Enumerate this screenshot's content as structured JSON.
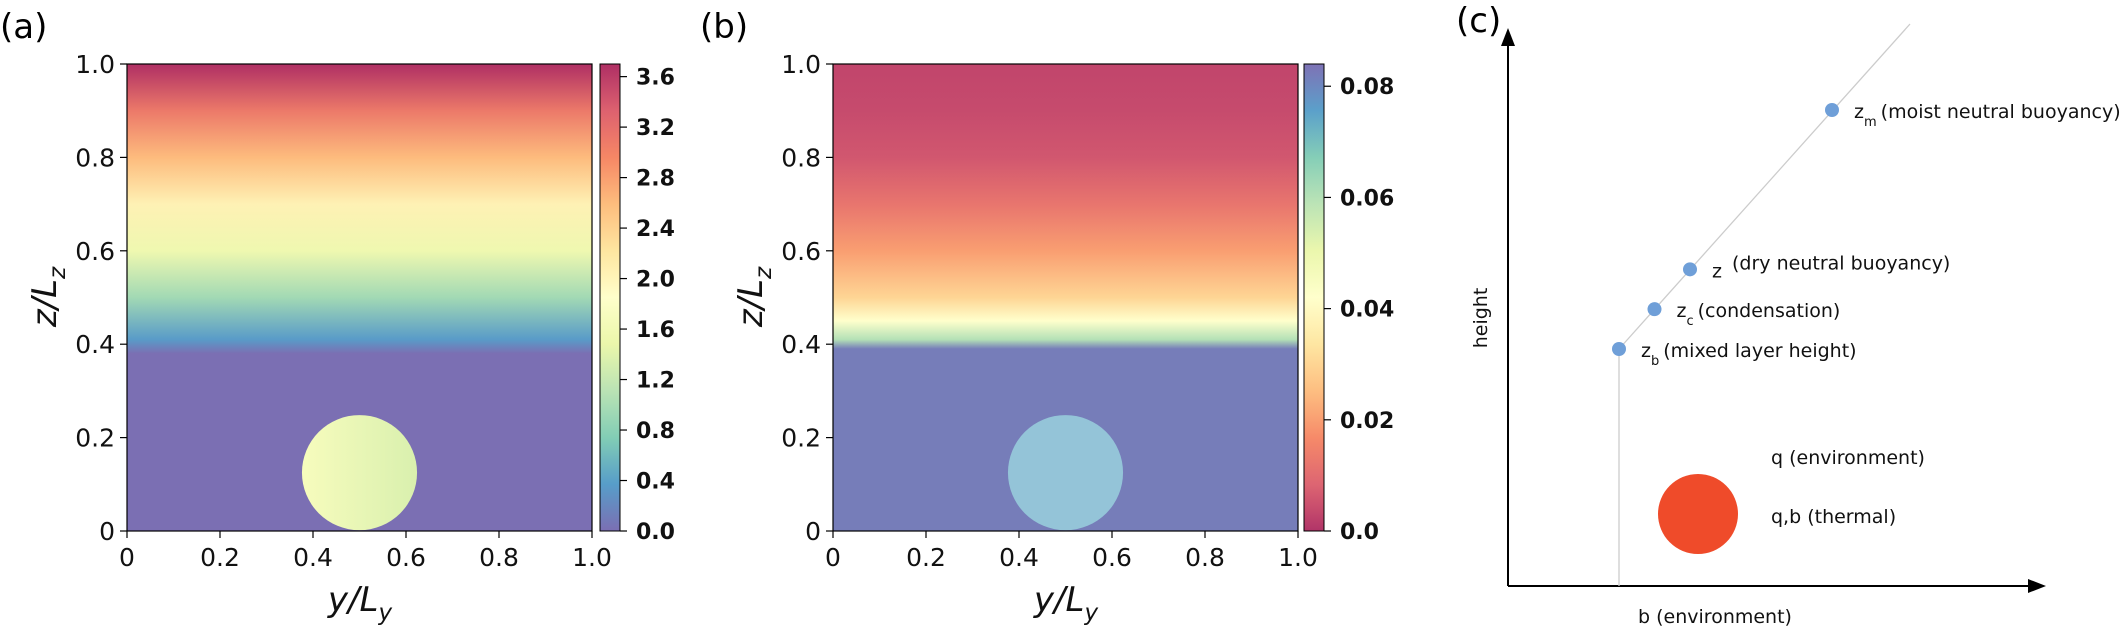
{
  "panels": {
    "a": {
      "letter": "(a)"
    },
    "b": {
      "letter": "(b)"
    },
    "c": {
      "letter": "(c)"
    }
  },
  "chart_data": [
    {
      "panel": "(a)",
      "type": "heatmap",
      "title": "",
      "xlabel_main": "y/L",
      "xlabel_sub": "y",
      "ylabel_main": "z/L",
      "ylabel_sub": "z",
      "xlim": [
        0,
        1
      ],
      "ylim": [
        0,
        1
      ],
      "xticks": [
        0,
        0.2,
        0.4,
        0.6,
        0.8,
        1.0
      ],
      "xtick_labels": [
        "0",
        "0.2",
        "0.4",
        "0.6",
        "0.8",
        "1.0"
      ],
      "yticks": [
        0,
        0.2,
        0.4,
        0.6,
        0.8,
        1.0
      ],
      "ytick_labels": [
        "0",
        "0.2",
        "0.4",
        "0.6",
        "0.8",
        "1.0"
      ],
      "colormap": "Spectral_r",
      "colorbar": {
        "min": 0.0,
        "max": 3.7,
        "ticks": [
          0.0,
          0.4,
          0.8,
          1.2,
          1.6,
          2.0,
          2.4,
          2.8,
          3.2,
          3.6
        ],
        "tick_labels": [
          "0.0",
          "0.4",
          "0.8",
          "1.2",
          "1.6",
          "2.0",
          "2.4",
          "2.8",
          "3.2",
          "3.6"
        ]
      },
      "field_profile": {
        "z": [
          0.0,
          0.38,
          0.41,
          0.5,
          0.6,
          0.7,
          0.8,
          0.9,
          1.0
        ],
        "value": [
          0.0,
          0.0,
          0.35,
          0.95,
          1.55,
          2.05,
          2.6,
          3.1,
          3.7
        ]
      },
      "thermal": {
        "center_y": 0.5,
        "center_z": 0.125,
        "radius": 0.125,
        "value_left": 1.7,
        "value_right": 1.35
      }
    },
    {
      "panel": "(b)",
      "type": "heatmap",
      "title": "",
      "xlabel_main": "y/L",
      "xlabel_sub": "y",
      "ylabel_main": "z/L",
      "ylabel_sub": "z",
      "xlim": [
        0,
        1
      ],
      "ylim": [
        0,
        1
      ],
      "xticks": [
        0,
        0.2,
        0.4,
        0.6,
        0.8,
        1.0
      ],
      "xtick_labels": [
        "0",
        "0.2",
        "0.4",
        "0.6",
        "0.8",
        "1.0"
      ],
      "yticks": [
        0,
        0.2,
        0.4,
        0.6,
        0.8,
        1.0
      ],
      "ytick_labels": [
        "0",
        "0.2",
        "0.4",
        "0.6",
        "0.8",
        "1.0"
      ],
      "colormap": "Spectral",
      "colorbar": {
        "min": 0.0,
        "max": 0.084,
        "ticks": [
          0.0,
          0.02,
          0.04,
          0.06,
          0.08
        ],
        "tick_labels": [
          "0.0",
          "0.02",
          "0.04",
          "0.06",
          "0.08"
        ]
      },
      "field_profile": {
        "z": [
          0.0,
          0.39,
          0.41,
          0.45,
          0.5,
          0.6,
          0.7,
          0.8,
          0.9,
          1.0
        ],
        "value": [
          0.082,
          0.082,
          0.06,
          0.042,
          0.03,
          0.02,
          0.012,
          0.006,
          0.004,
          0.003
        ]
      },
      "thermal": {
        "center_y": 0.5,
        "center_z": 0.125,
        "radius": 0.125,
        "value": 0.074
      }
    },
    {
      "panel": "(c)",
      "type": "scatter",
      "title": "",
      "xlabel": "b (environment)",
      "ylabel": "height",
      "points": [
        {
          "x": 0.0,
          "y": 0.0,
          "main": "z",
          "sub": "b",
          "label": "(mixed layer height)"
        },
        {
          "x": 0.1,
          "y": 0.1,
          "main": "z",
          "sub": "c",
          "label": "(condensation)"
        },
        {
          "x": 0.2,
          "y": 0.2,
          "main": "z",
          "sub": "",
          "label": " (dry neutral buoyancy)"
        },
        {
          "x": 0.6,
          "y": 0.6,
          "main": "z",
          "sub": "m",
          "label": "(moist neutral buoyancy)"
        }
      ],
      "profile_line": "vertical below z_b, then diagonal through z_b, z_c, z, z_m",
      "legend": {
        "environment_label": "q (environment)",
        "thermal_label": "q,b (thermal)"
      },
      "colors": {
        "point": "#6f9fd8",
        "thermal": "#ef4b2a",
        "guide_line": "#cccccc"
      }
    }
  ]
}
